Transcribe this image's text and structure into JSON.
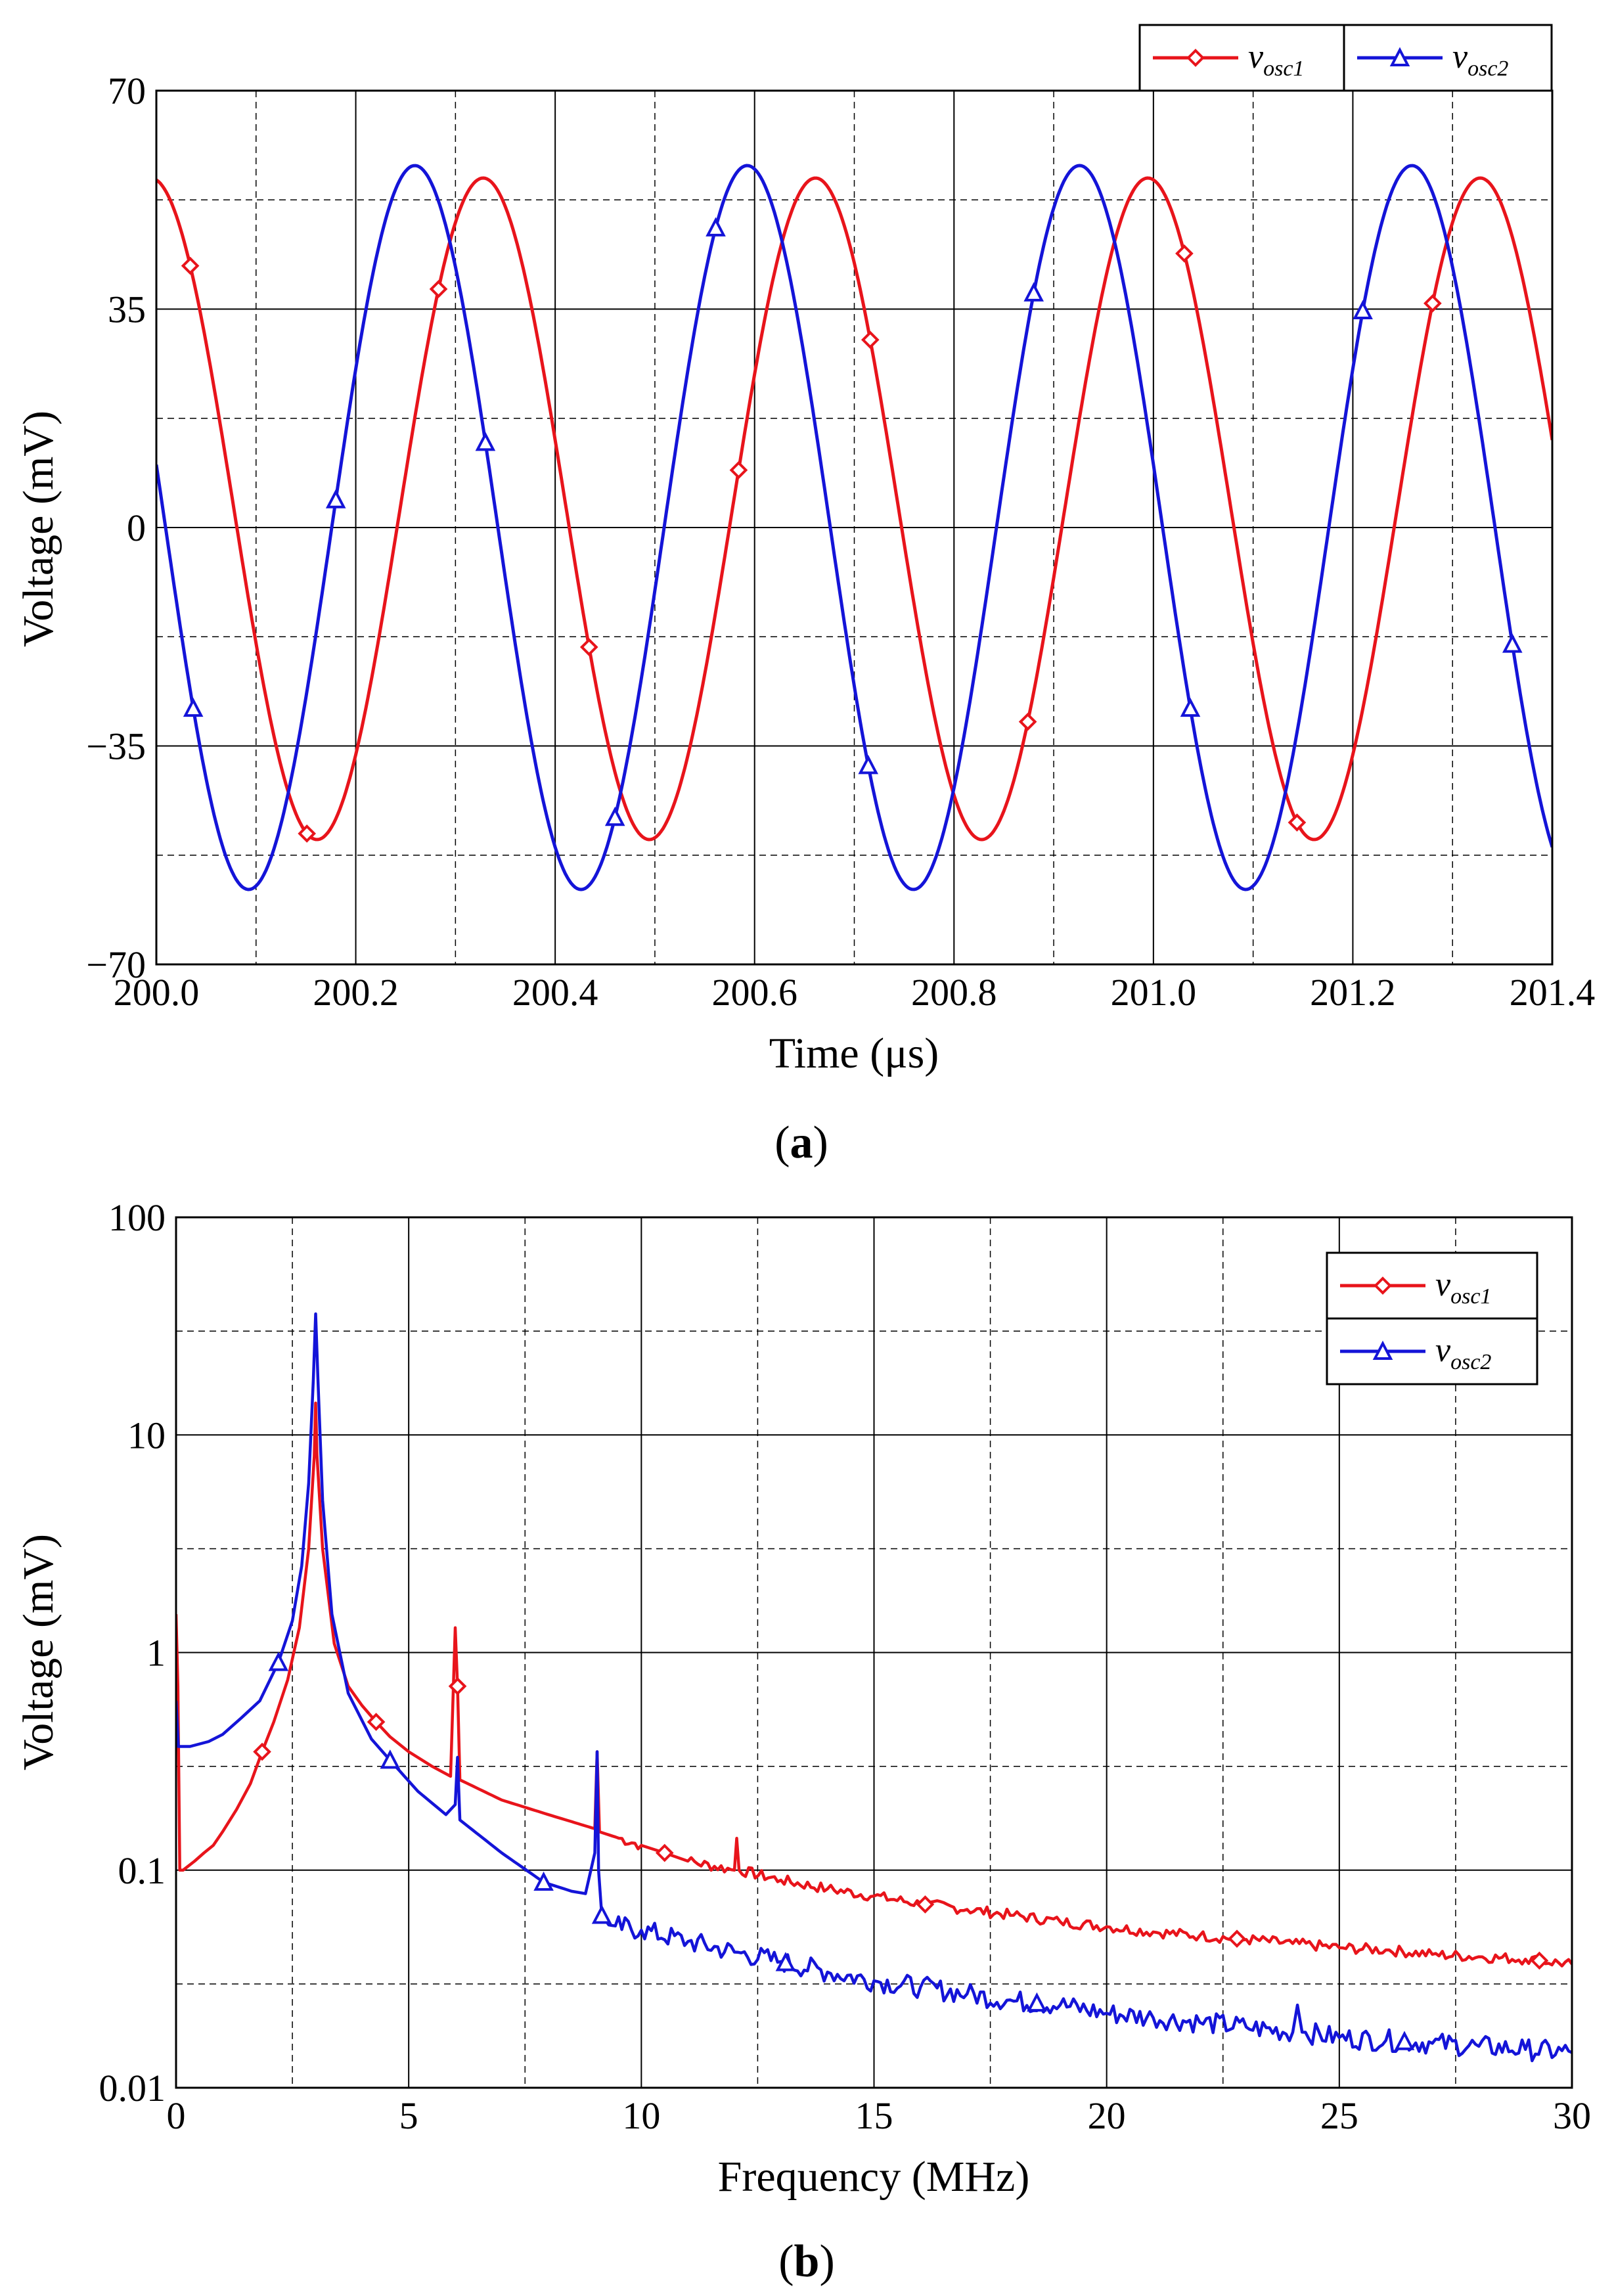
{
  "figure": {
    "panel_a_label": "a",
    "panel_b_label": "b"
  },
  "chart_data": [
    {
      "type": "line",
      "id": "a",
      "title": "",
      "xlabel": "Time (μs)",
      "ylabel": "Voltage (mV)",
      "xlim": [
        200.0,
        201.4
      ],
      "ylim": [
        -70,
        70
      ],
      "xticks": [
        200.0,
        200.2,
        200.4,
        200.6,
        200.8,
        201.0,
        201.2,
        201.4
      ],
      "xtick_labels": [
        "200.0",
        "200.2",
        "200.4",
        "200.6",
        "200.8",
        "201.0",
        "201.2",
        "201.4"
      ],
      "yticks": [
        -70,
        -35,
        0,
        35,
        70
      ],
      "ytick_labels": [
        "−70",
        "−35",
        "0",
        "35",
        "70"
      ],
      "grid": true,
      "legend_position": "top-right-outside",
      "series": [
        {
          "name": "v",
          "subscript": "osc1",
          "color": "#e8141b",
          "marker": "diamond",
          "model": "sine",
          "amplitude_mV": 53,
          "offset_mV": 3,
          "frequency_MHz": 3.0,
          "phase_deg": 96,
          "marker_x": [
            200.034,
            200.151,
            200.283,
            200.434,
            200.584,
            200.716,
            200.874,
            201.031,
            201.144,
            201.28
          ]
        },
        {
          "name": "v",
          "subscript": "osc2",
          "color": "#1414d8",
          "marker": "triangle",
          "model": "sine",
          "amplitude_mV": 58,
          "offset_mV": 0,
          "frequency_MHz": 3.0,
          "phase_deg": 170,
          "marker_x": [
            200.037,
            200.18,
            200.33,
            200.46,
            200.561,
            200.714,
            200.88,
            201.037,
            201.21,
            201.36
          ]
        }
      ]
    },
    {
      "type": "line",
      "id": "b",
      "title": "",
      "xlabel": "Frequency (MHz)",
      "ylabel": "Voltage (mV)",
      "xlim": [
        0,
        30
      ],
      "ylim": [
        0.01,
        100
      ],
      "yscale": "log",
      "xticks": [
        0,
        5,
        10,
        15,
        20,
        25,
        30
      ],
      "xtick_labels": [
        "0",
        "5",
        "10",
        "15",
        "20",
        "25",
        "30"
      ],
      "yticks": [
        0.01,
        0.1,
        1,
        10,
        100
      ],
      "ytick_labels": [
        "0.01",
        "0.1",
        "1",
        "10",
        "100"
      ],
      "minor_grid_x": [
        2.5,
        7.5,
        12.5,
        17.5,
        22.5,
        27.5
      ],
      "minor_grid_y": [
        0.03,
        0.3,
        3,
        30
      ],
      "grid": true,
      "legend_position": "top-right",
      "series": [
        {
          "name": "v",
          "subscript": "osc1",
          "color": "#e8141b",
          "marker": "diamond",
          "points": [
            [
              0.0,
              1.5
            ],
            [
              0.04,
              0.7
            ],
            [
              0.08,
              0.1
            ],
            [
              0.15,
              0.1
            ],
            [
              0.4,
              0.11
            ],
            [
              0.6,
              0.12
            ],
            [
              0.8,
              0.13
            ],
            [
              1.0,
              0.15
            ],
            [
              1.3,
              0.19
            ],
            [
              1.6,
              0.25
            ],
            [
              1.85,
              0.35
            ],
            [
              2.1,
              0.48
            ],
            [
              2.4,
              0.75
            ],
            [
              2.65,
              1.3
            ],
            [
              2.85,
              3.0
            ],
            [
              2.97,
              8.0
            ],
            [
              3.0,
              14
            ],
            [
              3.03,
              8.0
            ],
            [
              3.15,
              3.0
            ],
            [
              3.4,
              1.1
            ],
            [
              3.7,
              0.7
            ],
            [
              4.0,
              0.57
            ],
            [
              4.3,
              0.48
            ],
            [
              4.6,
              0.41
            ],
            [
              5.0,
              0.35
            ],
            [
              5.5,
              0.3
            ],
            [
              5.9,
              0.27
            ],
            [
              6.0,
              1.3
            ],
            [
              6.05,
              0.7
            ],
            [
              6.1,
              0.26
            ],
            [
              7.0,
              0.21
            ],
            [
              8.0,
              0.18
            ],
            [
              9.0,
              0.155
            ],
            [
              9.05,
              0.35
            ],
            [
              9.1,
              0.15
            ],
            [
              10.0,
              0.13
            ],
            [
              10.5,
              0.12
            ],
            [
              11.0,
              0.11
            ],
            [
              12.0,
              0.1
            ],
            [
              12.05,
              0.14
            ],
            [
              12.1,
              0.1
            ],
            [
              13.0,
              0.09
            ],
            [
              14.0,
              0.082
            ],
            [
              15.0,
              0.076
            ],
            [
              16.0,
              0.07
            ],
            [
              17.0,
              0.066
            ],
            [
              18.0,
              0.062
            ],
            [
              19.0,
              0.058
            ],
            [
              20.0,
              0.055
            ],
            [
              21.0,
              0.052
            ],
            [
              22.0,
              0.05
            ],
            [
              23.0,
              0.048
            ],
            [
              24.0,
              0.046
            ],
            [
              25.0,
              0.044
            ],
            [
              26.0,
              0.043
            ],
            [
              27.0,
              0.041
            ],
            [
              28.0,
              0.04
            ],
            [
              29.0,
              0.039
            ],
            [
              30.0,
              0.037
            ]
          ],
          "marker_x": [
            1.85,
            4.3,
            6.05,
            10.5,
            16.1,
            22.8,
            29.3
          ]
        },
        {
          "name": "v",
          "subscript": "osc2",
          "color": "#1414d8",
          "marker": "triangle",
          "points": [
            [
              0.0,
              0.6
            ],
            [
              0.05,
              0.37
            ],
            [
              0.3,
              0.37
            ],
            [
              0.7,
              0.39
            ],
            [
              1.0,
              0.42
            ],
            [
              1.4,
              0.5
            ],
            [
              1.8,
              0.6
            ],
            [
              2.2,
              0.9
            ],
            [
              2.5,
              1.4
            ],
            [
              2.7,
              2.5
            ],
            [
              2.85,
              6.0
            ],
            [
              2.95,
              18
            ],
            [
              3.0,
              36
            ],
            [
              3.05,
              18
            ],
            [
              3.15,
              5.0
            ],
            [
              3.35,
              1.5
            ],
            [
              3.7,
              0.65
            ],
            [
              4.2,
              0.4
            ],
            [
              4.6,
              0.32
            ],
            [
              5.2,
              0.23
            ],
            [
              5.8,
              0.18
            ],
            [
              6.0,
              0.2
            ],
            [
              6.05,
              0.33
            ],
            [
              6.1,
              0.17
            ],
            [
              7.0,
              0.12
            ],
            [
              7.9,
              0.088
            ],
            [
              8.5,
              0.08
            ],
            [
              8.8,
              0.078
            ],
            [
              9.0,
              0.12
            ],
            [
              9.05,
              0.35
            ],
            [
              9.08,
              0.1
            ],
            [
              9.15,
              0.062
            ],
            [
              9.3,
              0.056
            ],
            [
              10.0,
              0.053
            ],
            [
              11.0,
              0.047
            ],
            [
              12.0,
              0.042
            ],
            [
              13.0,
              0.038
            ],
            [
              14.0,
              0.034
            ],
            [
              15.0,
              0.031
            ],
            [
              16.0,
              0.029
            ],
            [
              17.0,
              0.027
            ],
            [
              18.0,
              0.025
            ],
            [
              19.0,
              0.024
            ],
            [
              20.0,
              0.022
            ],
            [
              21.0,
              0.021
            ],
            [
              22.0,
              0.02
            ],
            [
              23.0,
              0.019
            ],
            [
              24.0,
              0.018
            ],
            [
              24.1,
              0.024
            ],
            [
              24.2,
              0.018
            ],
            [
              25.0,
              0.017
            ],
            [
              26.0,
              0.0165
            ],
            [
              27.0,
              0.016
            ],
            [
              28.0,
              0.0155
            ],
            [
              29.0,
              0.015
            ],
            [
              30.0,
              0.0145
            ]
          ],
          "marker_x": [
            2.2,
            4.6,
            7.9,
            9.15,
            13.1,
            18.5,
            26.4
          ]
        }
      ]
    }
  ]
}
